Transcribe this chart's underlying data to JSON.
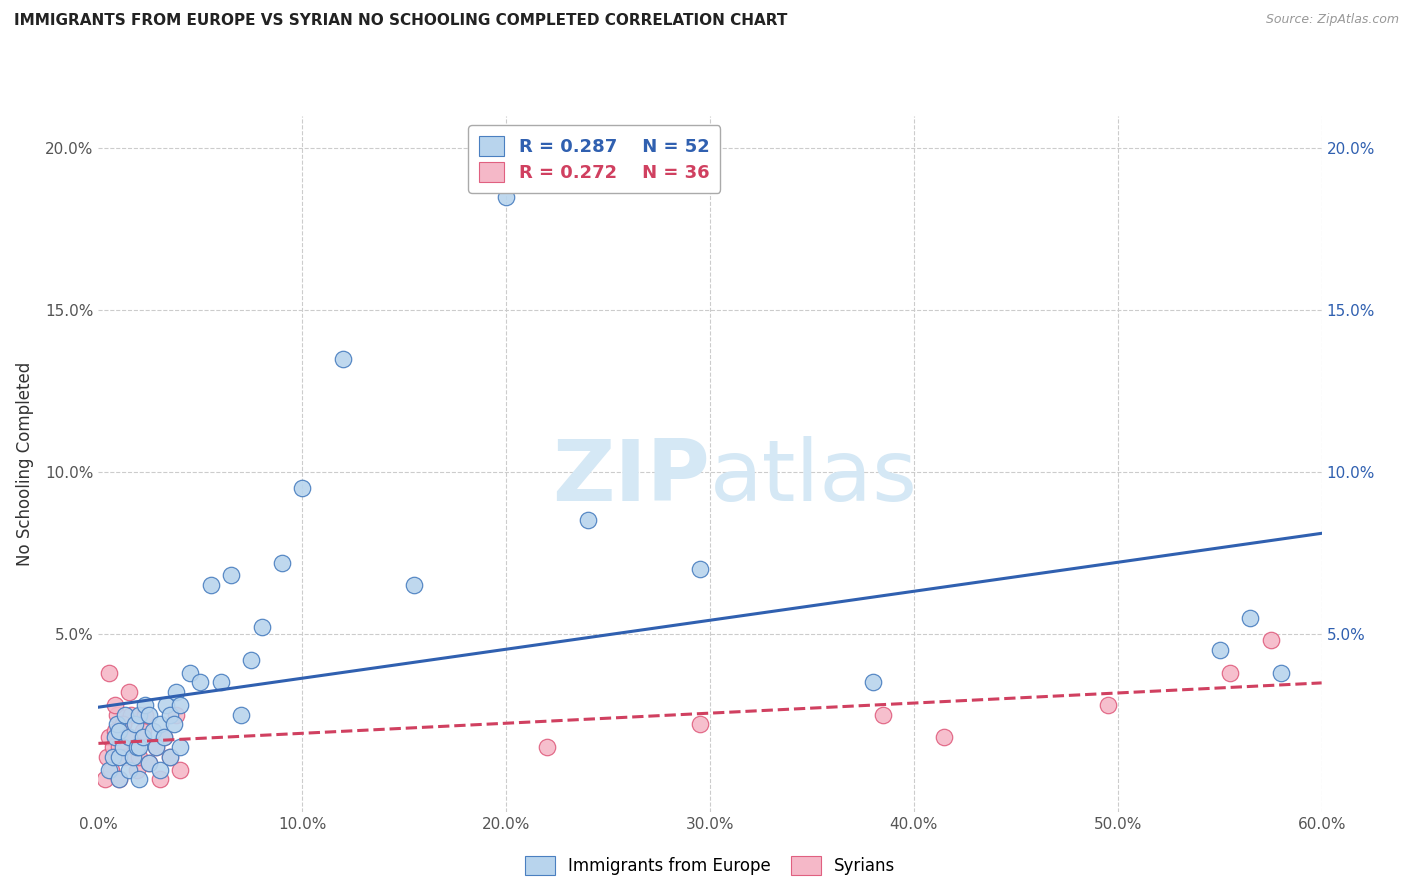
{
  "title": "IMMIGRANTS FROM EUROPE VS SYRIAN NO SCHOOLING COMPLETED CORRELATION CHART",
  "source": "Source: ZipAtlas.com",
  "ylabel": "No Schooling Completed",
  "xlim": [
    0.0,
    0.6
  ],
  "ylim": [
    -0.005,
    0.21
  ],
  "xticks": [
    0.0,
    0.1,
    0.2,
    0.3,
    0.4,
    0.5,
    0.6
  ],
  "xtick_labels": [
    "0.0%",
    "10.0%",
    "20.0%",
    "30.0%",
    "40.0%",
    "50.0%",
    "60.0%"
  ],
  "yticks": [
    0.0,
    0.05,
    0.1,
    0.15,
    0.2
  ],
  "ytick_labels_left": [
    "",
    "5.0%",
    "10.0%",
    "15.0%",
    "20.0%"
  ],
  "ytick_labels_right": [
    "",
    "5.0%",
    "10.0%",
    "15.0%",
    "20.0%"
  ],
  "legend1_r": "0.287",
  "legend1_n": "52",
  "legend2_r": "0.272",
  "legend2_n": "36",
  "blue_color": "#b8d4ed",
  "pink_color": "#f5b8c8",
  "blue_edge_color": "#4a7fc0",
  "pink_edge_color": "#e06080",
  "blue_line_color": "#3060b0",
  "pink_line_color": "#d04060",
  "watermark_color": "#d5e8f5",
  "blue_x": [
    0.005,
    0.007,
    0.008,
    0.009,
    0.01,
    0.01,
    0.01,
    0.012,
    0.013,
    0.015,
    0.015,
    0.017,
    0.018,
    0.019,
    0.02,
    0.02,
    0.02,
    0.022,
    0.023,
    0.025,
    0.025,
    0.027,
    0.028,
    0.03,
    0.03,
    0.032,
    0.033,
    0.035,
    0.035,
    0.037,
    0.038,
    0.04,
    0.04,
    0.045,
    0.05,
    0.055,
    0.06,
    0.065,
    0.07,
    0.075,
    0.08,
    0.09,
    0.1,
    0.12,
    0.155,
    0.2,
    0.24,
    0.295,
    0.38,
    0.55,
    0.565,
    0.58
  ],
  "blue_y": [
    0.008,
    0.012,
    0.018,
    0.022,
    0.005,
    0.012,
    0.02,
    0.015,
    0.025,
    0.008,
    0.018,
    0.012,
    0.022,
    0.015,
    0.005,
    0.015,
    0.025,
    0.018,
    0.028,
    0.01,
    0.025,
    0.02,
    0.015,
    0.008,
    0.022,
    0.018,
    0.028,
    0.012,
    0.025,
    0.022,
    0.032,
    0.015,
    0.028,
    0.038,
    0.035,
    0.065,
    0.035,
    0.068,
    0.025,
    0.042,
    0.052,
    0.072,
    0.095,
    0.135,
    0.065,
    0.185,
    0.085,
    0.07,
    0.035,
    0.045,
    0.055,
    0.038
  ],
  "pink_x": [
    0.003,
    0.004,
    0.005,
    0.006,
    0.007,
    0.008,
    0.009,
    0.01,
    0.01,
    0.012,
    0.013,
    0.015,
    0.016,
    0.018,
    0.019,
    0.02,
    0.022,
    0.023,
    0.025,
    0.028,
    0.03,
    0.032,
    0.035,
    0.038,
    0.04,
    0.005,
    0.008,
    0.012,
    0.015,
    0.22,
    0.295,
    0.385,
    0.415,
    0.495,
    0.555,
    0.575
  ],
  "pink_y": [
    0.005,
    0.012,
    0.018,
    0.008,
    0.015,
    0.02,
    0.025,
    0.005,
    0.015,
    0.022,
    0.012,
    0.018,
    0.025,
    0.015,
    0.008,
    0.012,
    0.02,
    0.025,
    0.01,
    0.015,
    0.005,
    0.018,
    0.012,
    0.025,
    0.008,
    0.038,
    0.028,
    0.022,
    0.032,
    0.015,
    0.022,
    0.025,
    0.018,
    0.028,
    0.038,
    0.048
  ]
}
